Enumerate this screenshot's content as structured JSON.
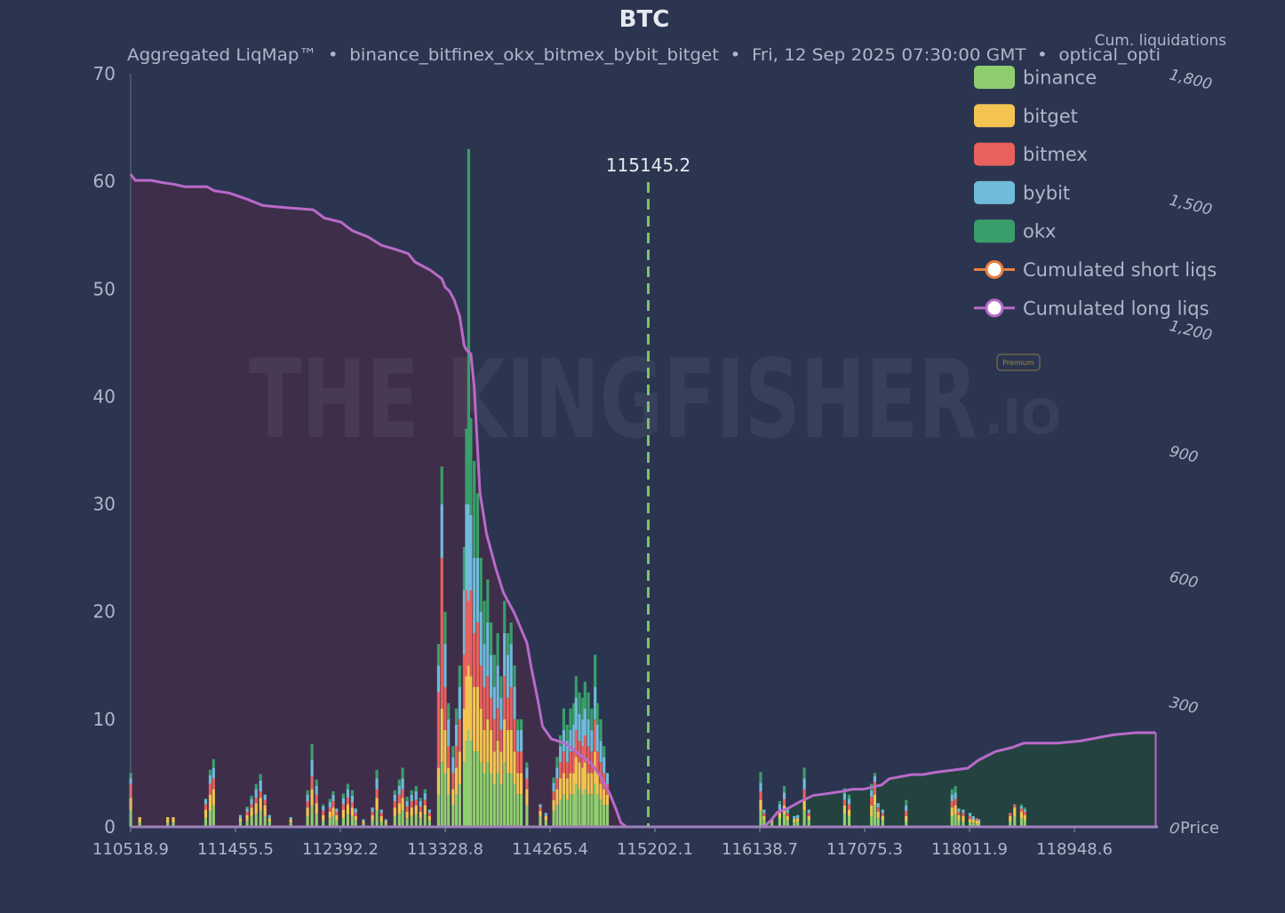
{
  "colors": {
    "background": "#2b3550",
    "axis_text": "#aeb6c8",
    "title_text": "#e6e9f0",
    "binance": "#8fce6e",
    "bitget": "#f4c452",
    "bitmex": "#e9605c",
    "bybit": "#6fbbd9",
    "okx": "#3a9e6a",
    "long_line": "#b96ac9",
    "long_fill": "#3f2e4a",
    "short_line": "#b96ac9",
    "short_fill": "#24433f",
    "price_line": "#7cc36a"
  },
  "watermark": {
    "main": "THE KINGFISHER",
    "suffix": ".IO",
    "badge": "Premium"
  },
  "chart_data": {
    "type": "bar",
    "title": "BTC",
    "subtitle": "Aggregated LiqMap™  •  binance_bitfinex_okx_bitmex_bybit_bitget  •  Fri, 12 Sep 2025 07:30:00 GMT  •  optical_opti",
    "xlabel": "Price",
    "ylabel_right": "Cum. liquidations",
    "x_ticks": [
      "110518.9",
      "111455.5",
      "112392.2",
      "113328.8",
      "114265.4",
      "115202.1",
      "116138.7",
      "117075.3",
      "118011.9",
      "118948.6"
    ],
    "x_range": [
      110518.9,
      119700
    ],
    "y_ticks": [
      "0",
      "10",
      "20",
      "30",
      "40",
      "50",
      "60",
      "70"
    ],
    "y_range": [
      0,
      70
    ],
    "y2_ticks": [
      "0",
      "300",
      "600",
      "900",
      "1,200",
      "1,500",
      "1,800"
    ],
    "y2_range": [
      0,
      1800
    ],
    "current_price": {
      "label": "115145.2",
      "value": 115145.2
    },
    "legend": [
      {
        "label": "binance",
        "kind": "bar",
        "color": "#8fce6e"
      },
      {
        "label": "bitget",
        "kind": "bar",
        "color": "#f4c452"
      },
      {
        "label": "bitmex",
        "kind": "bar",
        "color": "#e9605c"
      },
      {
        "label": "bybit",
        "kind": "bar",
        "color": "#6fbbd9"
      },
      {
        "label": "okx",
        "kind": "bar",
        "color": "#3a9e6a"
      },
      {
        "label": "Cumulated short liqs",
        "kind": "line",
        "color": "#e8803f"
      },
      {
        "label": "Cumulated long liqs",
        "kind": "line",
        "color": "#b96ac9"
      }
    ],
    "stack_order": [
      "binance",
      "bitget",
      "bitmex",
      "bybit",
      "okx"
    ],
    "bars": [
      [
        110520,
        1.5,
        1.2,
        1.3,
        0.5,
        0.5
      ],
      [
        110600,
        0.4,
        0.5,
        0,
        0,
        0
      ],
      [
        110850,
        0.4,
        0.5,
        0,
        0,
        0
      ],
      [
        110900,
        0.4,
        0.5,
        0,
        0,
        0
      ],
      [
        111190,
        0.8,
        0.8,
        0.5,
        0.5,
        0
      ],
      [
        111230,
        1.5,
        1.5,
        1,
        0.8,
        0.5
      ],
      [
        111260,
        2,
        1.5,
        1,
        1,
        0.8
      ],
      [
        111500,
        0.5,
        0.3,
        0,
        0.3,
        0
      ],
      [
        111560,
        0.6,
        0.5,
        0.3,
        0.3,
        0.2
      ],
      [
        111600,
        1,
        0.8,
        0.3,
        0.5,
        0.3
      ],
      [
        111640,
        1.2,
        1,
        0.5,
        0.8,
        0.5
      ],
      [
        111680,
        1.5,
        1.2,
        0.6,
        1,
        0.6
      ],
      [
        111720,
        1,
        1,
        0.5,
        0.5,
        0
      ],
      [
        111760,
        0.5,
        0.3,
        0,
        0.3,
        0
      ],
      [
        111950,
        0.4,
        0.3,
        0,
        0.2,
        0
      ],
      [
        112100,
        1,
        0.8,
        0.6,
        0.6,
        0.4
      ],
      [
        112140,
        2,
        1.5,
        1.2,
        1.5,
        1.5
      ],
      [
        112180,
        1.2,
        1,
        0.8,
        0.8,
        0.6
      ],
      [
        112240,
        0.6,
        0.5,
        0.4,
        0.4,
        0.2
      ],
      [
        112300,
        0.8,
        0.6,
        0.4,
        0.5,
        0.3
      ],
      [
        112330,
        1,
        0.8,
        0.6,
        0.6,
        0.3
      ],
      [
        112360,
        0.6,
        0.5,
        0.3,
        0.3,
        0
      ],
      [
        112420,
        0.8,
        0.8,
        0.5,
        0.6,
        0.4
      ],
      [
        112460,
        1.2,
        0.9,
        0.6,
        0.8,
        0.5
      ],
      [
        112500,
        1,
        0.8,
        0.5,
        0.6,
        0.5
      ],
      [
        112530,
        0.6,
        0.4,
        0.3,
        0.4,
        0
      ],
      [
        112600,
        0.3,
        0.2,
        0,
        0.2,
        0
      ],
      [
        112680,
        0.6,
        0.5,
        0.3,
        0.4,
        0
      ],
      [
        112720,
        1.5,
        1.2,
        0.8,
        1,
        0.8
      ],
      [
        112760,
        0.5,
        0.5,
        0.3,
        0.3,
        0
      ],
      [
        112800,
        0.3,
        0.2,
        0,
        0.2,
        0
      ],
      [
        112880,
        1,
        0.8,
        0.6,
        0.6,
        0.4
      ],
      [
        112920,
        1.2,
        1,
        0.8,
        0.8,
        0.6
      ],
      [
        112950,
        1.5,
        1.2,
        0.8,
        1,
        1
      ],
      [
        112990,
        0.8,
        0.6,
        0.5,
        0.5,
        0.4
      ],
      [
        113030,
        1,
        0.8,
        0.6,
        0.6,
        0.4
      ],
      [
        113070,
        1.2,
        0.8,
        0.5,
        0.8,
        0.5
      ],
      [
        113110,
        0.8,
        0.6,
        0.5,
        0.5,
        0.3
      ],
      [
        113150,
        1.2,
        0.8,
        0.5,
        0.6,
        0.4
      ],
      [
        113190,
        0.6,
        0.4,
        0.3,
        0.3,
        0
      ],
      [
        113270,
        3,
        2.5,
        7,
        2.5,
        2
      ],
      [
        113300,
        6,
        5,
        14,
        5,
        3.5
      ],
      [
        113330,
        5,
        4,
        4,
        4,
        3
      ],
      [
        113360,
        3,
        2.5,
        2,
        2.5,
        1.5
      ],
      [
        113400,
        2,
        1.5,
        1.5,
        1.5,
        1
      ],
      [
        113430,
        3,
        2.5,
        2,
        2,
        1.5
      ],
      [
        113460,
        4,
        3,
        3,
        3,
        2
      ],
      [
        113500,
        6,
        5,
        5,
        6,
        4
      ],
      [
        113520,
        8,
        6,
        8,
        8,
        7
      ],
      [
        113540,
        9,
        6,
        6,
        9,
        33
      ],
      [
        113560,
        8,
        6,
        8,
        7,
        9
      ],
      [
        113590,
        7,
        6,
        5,
        7,
        9
      ],
      [
        113620,
        7,
        6,
        6,
        6,
        6
      ],
      [
        113650,
        6,
        5,
        4,
        5,
        5
      ],
      [
        113680,
        5,
        4,
        4,
        4,
        4
      ],
      [
        113710,
        6,
        4,
        4,
        5,
        4
      ],
      [
        113740,
        5,
        4,
        3,
        4,
        3
      ],
      [
        113770,
        4,
        3,
        3,
        3,
        3
      ],
      [
        113800,
        5,
        3,
        3,
        4,
        3
      ],
      [
        113830,
        4,
        3,
        2,
        3,
        2
      ],
      [
        113860,
        6,
        4,
        4,
        4,
        3
      ],
      [
        113890,
        5,
        4,
        3,
        4,
        2
      ],
      [
        113920,
        5,
        4,
        4,
        4,
        2
      ],
      [
        113950,
        4,
        3,
        3,
        3,
        2
      ],
      [
        113980,
        3,
        2,
        2,
        2,
        1
      ],
      [
        114010,
        3,
        2,
        2,
        2,
        1
      ],
      [
        114060,
        2,
        1.5,
        1,
        1,
        0.5
      ],
      [
        114180,
        1,
        0.5,
        0.3,
        0.3,
        0
      ],
      [
        114230,
        0.6,
        0.4,
        0,
        0.3,
        0
      ],
      [
        114300,
        1.5,
        1,
        0.8,
        0.8,
        0.5
      ],
      [
        114330,
        2,
        1.5,
        1,
        1,
        1
      ],
      [
        114360,
        2.5,
        2,
        1.5,
        1.5,
        1
      ],
      [
        114390,
        3,
        2,
        2,
        2,
        2
      ],
      [
        114420,
        2.5,
        2,
        1.5,
        2,
        1.5
      ],
      [
        114450,
        3,
        2,
        2,
        2,
        2
      ],
      [
        114480,
        3,
        2,
        2,
        2.5,
        2
      ],
      [
        114500,
        4,
        2.5,
        2.5,
        3,
        2
      ],
      [
        114530,
        3.5,
        2.5,
        2,
        2.5,
        2
      ],
      [
        114560,
        3,
        2.5,
        2,
        2.5,
        2
      ],
      [
        114580,
        3.5,
        2.5,
        2.5,
        2.5,
        2.5
      ],
      [
        114610,
        3,
        2,
        2.5,
        2.5,
        2.5
      ],
      [
        114640,
        3,
        2,
        2,
        2,
        2
      ],
      [
        114670,
        4,
        3,
        3,
        3,
        3
      ],
      [
        114690,
        3,
        2,
        2,
        2.5,
        2
      ],
      [
        114720,
        2.5,
        1.5,
        2,
        2,
        2
      ],
      [
        114750,
        2,
        1.5,
        1.5,
        1.5,
        1
      ],
      [
        114780,
        2,
        1,
        1,
        1,
        0
      ],
      [
        115820,
        0,
        0,
        0,
        0,
        0
      ],
      [
        116150,
        1.5,
        1,
        0.8,
        0.8,
        1
      ],
      [
        116180,
        0.6,
        0.4,
        0.3,
        0.3,
        0
      ],
      [
        116250,
        0.4,
        0.3,
        0,
        0,
        0
      ],
      [
        116320,
        0.8,
        0.5,
        0.3,
        0.5,
        0.3
      ],
      [
        116360,
        1.2,
        0.8,
        0.6,
        0.6,
        0.6
      ],
      [
        116390,
        0.6,
        0.4,
        0.3,
        0.3,
        0
      ],
      [
        116450,
        0.4,
        0.3,
        0,
        0.3,
        0
      ],
      [
        116480,
        0.5,
        0.3,
        0,
        0.3,
        0
      ],
      [
        116540,
        1.5,
        1,
        1,
        1,
        1
      ],
      [
        116580,
        0.6,
        0.4,
        0.3,
        0.3,
        0
      ],
      [
        116900,
        1.2,
        0.8,
        0.5,
        0.6,
        0.5
      ],
      [
        116940,
        1,
        0.6,
        0.5,
        0.5,
        0.4
      ],
      [
        117140,
        1,
        1,
        0.8,
        0.6,
        0.6
      ],
      [
        117170,
        2,
        1,
        1.2,
        0.5,
        0.3
      ],
      [
        117200,
        0.8,
        0.6,
        0.4,
        0.4,
        0
      ],
      [
        117240,
        0.6,
        0.4,
        0.3,
        0.3,
        0
      ],
      [
        117450,
        0.5,
        0.5,
        0.5,
        0.5,
        0.5
      ],
      [
        117860,
        1,
        0.8,
        0.6,
        0.6,
        0.5
      ],
      [
        117890,
        1.2,
        0.8,
        0.6,
        0.6,
        0.6
      ],
      [
        117920,
        0.6,
        0.5,
        0.3,
        0.3,
        0
      ],
      [
        117960,
        0.5,
        0.5,
        0.3,
        0.3,
        0
      ],
      [
        118020,
        0.4,
        0.3,
        0.3,
        0.3,
        0
      ],
      [
        118050,
        0.4,
        0.3,
        0,
        0.3,
        0
      ],
      [
        118080,
        0.3,
        0.3,
        0.2,
        0,
        0
      ],
      [
        118100,
        0.3,
        0.2,
        0,
        0.2,
        0
      ],
      [
        118380,
        0.5,
        0.5,
        0.3,
        0,
        0
      ],
      [
        118420,
        1,
        0.8,
        0.3,
        0,
        0
      ],
      [
        118480,
        0.8,
        0.6,
        0.3,
        0.2,
        0.2
      ],
      [
        118510,
        0.6,
        0.5,
        0.3,
        0.2,
        0.2
      ]
    ],
    "long_liqs": [
      [
        110518.9,
        1560
      ],
      [
        110560,
        1545
      ],
      [
        110700,
        1545
      ],
      [
        110800,
        1540
      ],
      [
        110920,
        1535
      ],
      [
        111000,
        1530
      ],
      [
        111200,
        1530
      ],
      [
        111270,
        1520
      ],
      [
        111400,
        1515
      ],
      [
        111560,
        1500
      ],
      [
        111700,
        1485
      ],
      [
        111900,
        1480
      ],
      [
        112150,
        1475
      ],
      [
        112250,
        1455
      ],
      [
        112400,
        1445
      ],
      [
        112500,
        1425
      ],
      [
        112640,
        1410
      ],
      [
        112760,
        1390
      ],
      [
        112890,
        1380
      ],
      [
        113000,
        1370
      ],
      [
        113060,
        1350
      ],
      [
        113200,
        1330
      ],
      [
        113300,
        1310
      ],
      [
        113330,
        1290
      ],
      [
        113370,
        1280
      ],
      [
        113410,
        1260
      ],
      [
        113460,
        1220
      ],
      [
        113500,
        1150
      ],
      [
        113520,
        1140
      ],
      [
        113560,
        1130
      ],
      [
        113590,
        1050
      ],
      [
        113620,
        900
      ],
      [
        113640,
        800
      ],
      [
        113700,
        700
      ],
      [
        113780,
        620
      ],
      [
        113850,
        560
      ],
      [
        113950,
        510
      ],
      [
        114060,
        440
      ],
      [
        114100,
        380
      ],
      [
        114160,
        300
      ],
      [
        114200,
        240
      ],
      [
        114280,
        210
      ],
      [
        114400,
        200
      ],
      [
        114500,
        180
      ],
      [
        114640,
        150
      ],
      [
        114720,
        120
      ],
      [
        114800,
        80
      ],
      [
        114860,
        40
      ],
      [
        114900,
        10
      ],
      [
        114950,
        0
      ],
      [
        119700,
        0
      ]
    ],
    "short_liqs": [
      [
        110518.9,
        0
      ],
      [
        116180,
        0
      ],
      [
        116240,
        15
      ],
      [
        116300,
        35
      ],
      [
        116400,
        45
      ],
      [
        116500,
        60
      ],
      [
        116620,
        75
      ],
      [
        116760,
        80
      ],
      [
        116880,
        85
      ],
      [
        116970,
        90
      ],
      [
        117070,
        90
      ],
      [
        117150,
        95
      ],
      [
        117230,
        100
      ],
      [
        117300,
        115
      ],
      [
        117400,
        120
      ],
      [
        117500,
        125
      ],
      [
        117600,
        125
      ],
      [
        117700,
        130
      ],
      [
        117850,
        135
      ],
      [
        118000,
        140
      ],
      [
        118100,
        160
      ],
      [
        118250,
        180
      ],
      [
        118400,
        190
      ],
      [
        118500,
        200
      ],
      [
        118600,
        200
      ],
      [
        118800,
        200
      ],
      [
        119000,
        205
      ],
      [
        119100,
        210
      ],
      [
        119300,
        220
      ],
      [
        119500,
        225
      ],
      [
        119680,
        225
      ]
    ]
  }
}
